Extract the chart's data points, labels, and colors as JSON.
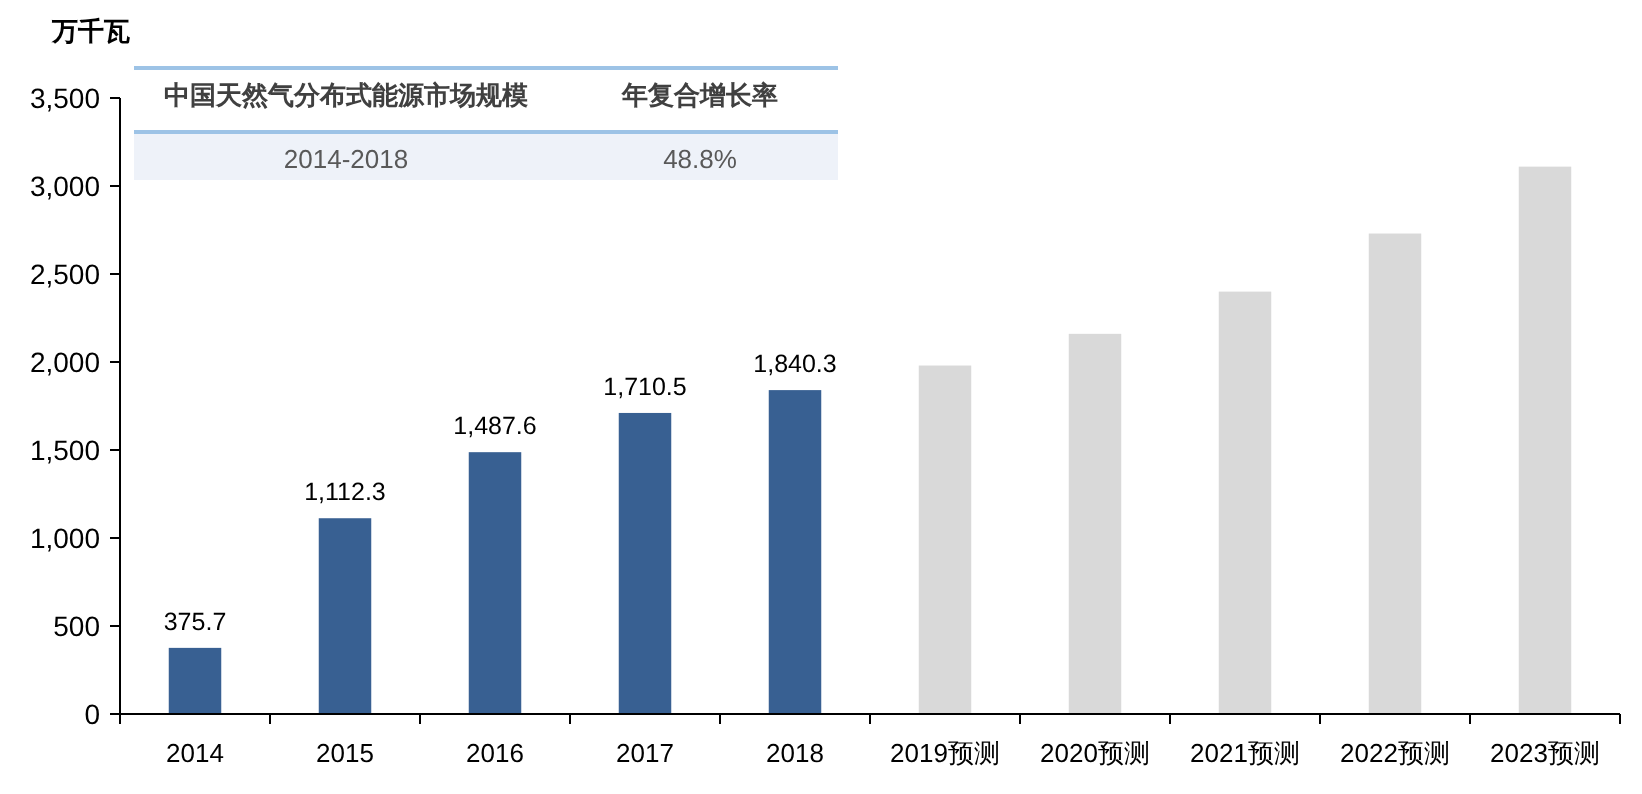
{
  "chart_data": {
    "type": "bar",
    "ylabel": "万千瓦",
    "categories": [
      "2014",
      "2015",
      "2016",
      "2017",
      "2018",
      "2019预测",
      "2020预测",
      "2021预测",
      "2022预测",
      "2023预测"
    ],
    "values": [
      375.7,
      1112.3,
      1487.6,
      1710.5,
      1840.3,
      1980,
      2160,
      2400,
      2730,
      3110
    ],
    "colors": [
      "#386092",
      "#386092",
      "#386092",
      "#386092",
      "#386092",
      "#d9d9d9",
      "#d9d9d9",
      "#d9d9d9",
      "#d9d9d9",
      "#d9d9d9"
    ],
    "value_labels": [
      "375.7",
      "1,112.3",
      "1,487.6",
      "1,710.5",
      "1,840.3",
      null,
      null,
      null,
      null,
      null
    ],
    "ylim": [
      0,
      3500
    ],
    "yticks": [
      {
        "value": 0,
        "label": "0"
      },
      {
        "value": 500,
        "label": "500"
      },
      {
        "value": 1000,
        "label": "1,000"
      },
      {
        "value": 1500,
        "label": "1,500"
      },
      {
        "value": 2000,
        "label": "2,000"
      },
      {
        "value": 2500,
        "label": "2,500"
      },
      {
        "value": 3000,
        "label": "3,000"
      },
      {
        "value": 3500,
        "label": "3,500"
      }
    ],
    "annotations": [
      "中国天然气分布式能源市场规模",
      "年复合增长率",
      "2014-2018",
      "48.8%"
    ],
    "grid": false
  }
}
